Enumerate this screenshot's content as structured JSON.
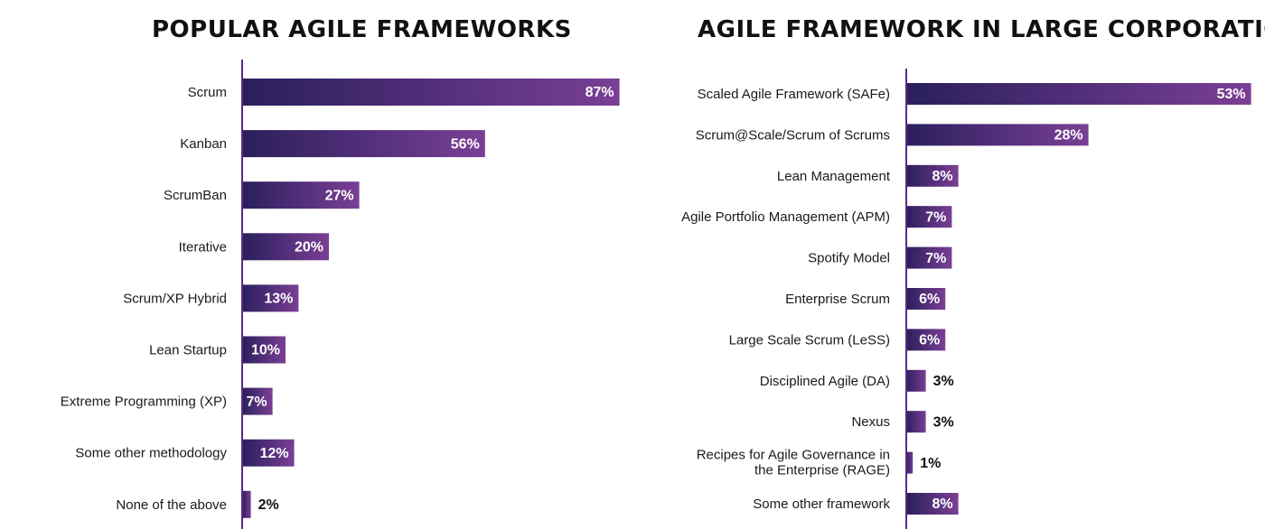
{
  "colors": {
    "bar_start": "#2a1f5c",
    "bar_end": "#7a3f95",
    "axis": "#5b2a80",
    "label_inside": "#ffffff",
    "label_outside": "#111111"
  },
  "chart_data": [
    {
      "type": "bar",
      "orientation": "horizontal",
      "title": "POPULAR AGILE FRAMEWORKS",
      "categories": [
        "Scrum",
        "Kanban",
        "ScrumBan",
        "Iterative",
        "Scrum/XP Hybrid",
        "Lean Startup",
        "Extreme Programming (XP)",
        "Some other methodology",
        "None of the above"
      ],
      "values": [
        87,
        56,
        27,
        20,
        13,
        10,
        7,
        12,
        2
      ],
      "value_labels": [
        "87%",
        "56%",
        "27%",
        "20%",
        "13%",
        "10%",
        "7%",
        "12%",
        "2%"
      ],
      "unit": "%",
      "grid": false,
      "legend": "none"
    },
    {
      "type": "bar",
      "orientation": "horizontal",
      "title": "AGILE FRAMEWORK IN LARGE CORPORATIONS",
      "categories": [
        "Scaled Agile Framework (SAFe)",
        "Scrum@Scale/Scrum of Scrums",
        "Lean Management",
        "Agile Portfolio Management (APM)",
        "Spotify Model",
        "Enterprise Scrum",
        "Large Scale Scrum (LeSS)",
        "Disciplined Agile (DA)",
        "Nexus",
        "Recipes for Agile Governance in the Enterprise (RAGE)",
        "Some other framework"
      ],
      "values": [
        53,
        28,
        8,
        7,
        7,
        6,
        6,
        3,
        3,
        1,
        8
      ],
      "value_labels": [
        "53%",
        "28%",
        "8%",
        "7%",
        "7%",
        "6%",
        "6%",
        "3%",
        "3%",
        "1%",
        "8%"
      ],
      "unit": "%",
      "grid": false,
      "legend": "none"
    }
  ]
}
